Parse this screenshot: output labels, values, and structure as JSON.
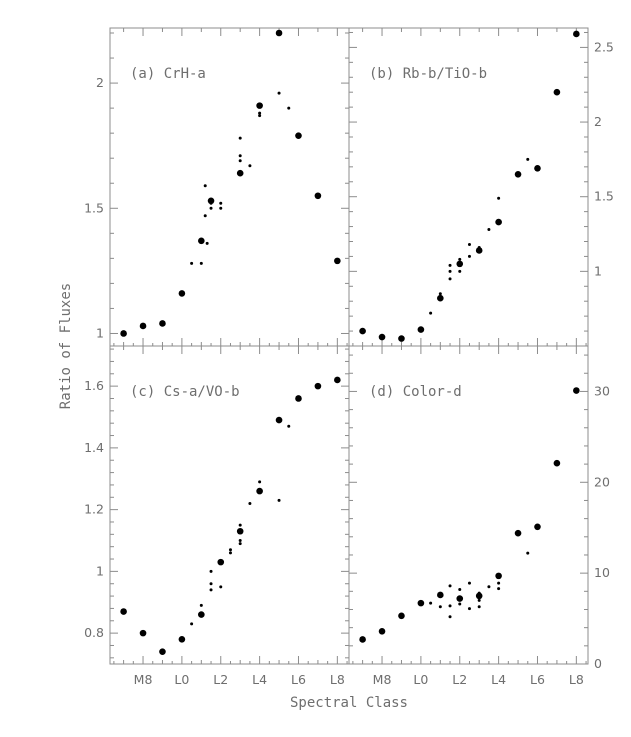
{
  "figure": {
    "xlabel": "Spectral Class",
    "ylabel": "Ratio of Fluxes"
  },
  "chart_data": [
    {
      "type": "scatter",
      "title": "(a) CrH-a",
      "xlabel": "Spectral Class",
      "ylabel": "Ratio of Fluxes",
      "x_axis": "spectral type (M7=7 ... L8=18)",
      "xlim": [
        6.3,
        18.6
      ],
      "ylim": [
        0.95,
        2.22
      ],
      "yticks": [
        1,
        1.5,
        2
      ],
      "yaxis_side": "left",
      "series": [
        {
          "marker": "large",
          "x": [
            "M7",
            "M8",
            "M9",
            "L0",
            "L1",
            "L1.5",
            "L3",
            "L4",
            "L5",
            "L6",
            "L7",
            "L8"
          ],
          "y": [
            1.0,
            1.03,
            1.04,
            1.16,
            1.37,
            1.53,
            1.64,
            1.91,
            2.2,
            1.79,
            1.55,
            1.29
          ]
        },
        {
          "marker": "small",
          "x": [
            "L0.5",
            "L1",
            "L1.2",
            "L1.2",
            "L1.3",
            "L1.5",
            "L1.5",
            "L2",
            "L2",
            "L3",
            "L3",
            "L3",
            "L3.5",
            "L4",
            "L4",
            "L5",
            "L5.5"
          ],
          "y": [
            1.28,
            1.28,
            1.47,
            1.59,
            1.36,
            1.52,
            1.5,
            1.5,
            1.52,
            1.78,
            1.71,
            1.69,
            1.67,
            1.87,
            1.88,
            1.96,
            1.9
          ]
        }
      ]
    },
    {
      "type": "scatter",
      "title": "(b) Rb-b/TiO-b",
      "xlabel": "Spectral Class",
      "ylabel": "",
      "x_axis": "spectral type (M7=7 ... L8=18)",
      "xlim": [
        6.3,
        18.6
      ],
      "ylim": [
        0.5,
        2.63
      ],
      "yticks": [
        1,
        1.5,
        2,
        2.5
      ],
      "yaxis_side": "right",
      "series": [
        {
          "marker": "large",
          "x": [
            "M7",
            "M8",
            "M9",
            "L0",
            "L1",
            "L2",
            "L3",
            "L4",
            "L5",
            "L6",
            "L7",
            "L8"
          ],
          "y": [
            0.6,
            0.56,
            0.55,
            0.61,
            0.82,
            1.05,
            1.14,
            1.33,
            1.65,
            1.69,
            2.2,
            2.59
          ]
        },
        {
          "marker": "small",
          "x": [
            "L0.5",
            "L1",
            "L1.5",
            "L1.5",
            "L1.5",
            "L2",
            "L2",
            "L2.5",
            "L2.5",
            "L3",
            "L3.5",
            "L4",
            "L5.5"
          ],
          "y": [
            0.72,
            0.85,
            0.95,
            1.0,
            1.04,
            1.0,
            1.08,
            1.1,
            1.18,
            1.16,
            1.28,
            1.49,
            1.75
          ]
        }
      ]
    },
    {
      "type": "scatter",
      "title": "(c) Cs-a/VO-b",
      "xlabel": "Spectral Class",
      "ylabel": "Ratio of Fluxes",
      "x_axis": "spectral type (M7=7 ... L8=18)",
      "xlim": [
        6.3,
        18.6
      ],
      "ylim": [
        0.7,
        1.73
      ],
      "yticks": [
        0.8,
        1,
        1.2,
        1.4,
        1.6
      ],
      "yaxis_side": "left",
      "series": [
        {
          "marker": "large",
          "x": [
            "M7",
            "M8",
            "M9",
            "L0",
            "L1",
            "L2",
            "L3",
            "L4",
            "L5",
            "L6",
            "L7",
            "L8"
          ],
          "y": [
            0.87,
            0.8,
            0.74,
            0.78,
            0.86,
            1.03,
            1.13,
            1.26,
            1.49,
            1.56,
            1.6,
            1.62
          ]
        },
        {
          "marker": "small",
          "x": [
            "L0.5",
            "L1",
            "L1.5",
            "L1.5",
            "L1.5",
            "L2",
            "L2.5",
            "L2.5",
            "L3",
            "L3",
            "L3",
            "L3.5",
            "L4",
            "L4",
            "L5",
            "L5.5"
          ],
          "y": [
            0.83,
            0.89,
            0.94,
            0.96,
            1.0,
            0.95,
            1.07,
            1.06,
            1.1,
            1.09,
            1.15,
            1.22,
            1.29,
            1.26,
            1.23,
            1.47
          ]
        }
      ]
    },
    {
      "type": "scatter",
      "title": "(d) Color-d",
      "xlabel": "Spectral Class",
      "ylabel": "",
      "x_axis": "spectral type (M7=7 ... L8=18)",
      "xlim": [
        6.3,
        18.6
      ],
      "ylim": [
        0,
        35
      ],
      "yticks": [
        0,
        10,
        20,
        30
      ],
      "yaxis_side": "right",
      "series": [
        {
          "marker": "large",
          "x": [
            "M7",
            "M8",
            "M9",
            "L0",
            "L1",
            "L2",
            "L3",
            "L4",
            "L5",
            "L6",
            "L7",
            "L8"
          ],
          "y": [
            2.7,
            3.6,
            5.3,
            6.7,
            7.6,
            7.2,
            7.5,
            9.7,
            14.4,
            15.1,
            22.1,
            30.1
          ]
        },
        {
          "marker": "small",
          "x": [
            "L0.5",
            "L1",
            "L1",
            "L1.5",
            "L1.5",
            "L1.5",
            "L2",
            "L2",
            "L2.5",
            "L2.5",
            "L3",
            "L3",
            "L3",
            "L3.5",
            "L4",
            "L4",
            "L5.5"
          ],
          "y": [
            6.7,
            6.3,
            7.6,
            5.2,
            6.4,
            8.6,
            6.6,
            8.2,
            6.1,
            8.9,
            6.3,
            7.0,
            7.8,
            8.5,
            8.3,
            8.9,
            12.2
          ]
        }
      ]
    }
  ],
  "xticklabels": [
    {
      "value": 8,
      "label": "M8"
    },
    {
      "value": 10,
      "label": "L0"
    },
    {
      "value": 12,
      "label": "L2"
    },
    {
      "value": 14,
      "label": "L4"
    },
    {
      "value": 16,
      "label": "L6"
    },
    {
      "value": 18,
      "label": "L8"
    }
  ]
}
